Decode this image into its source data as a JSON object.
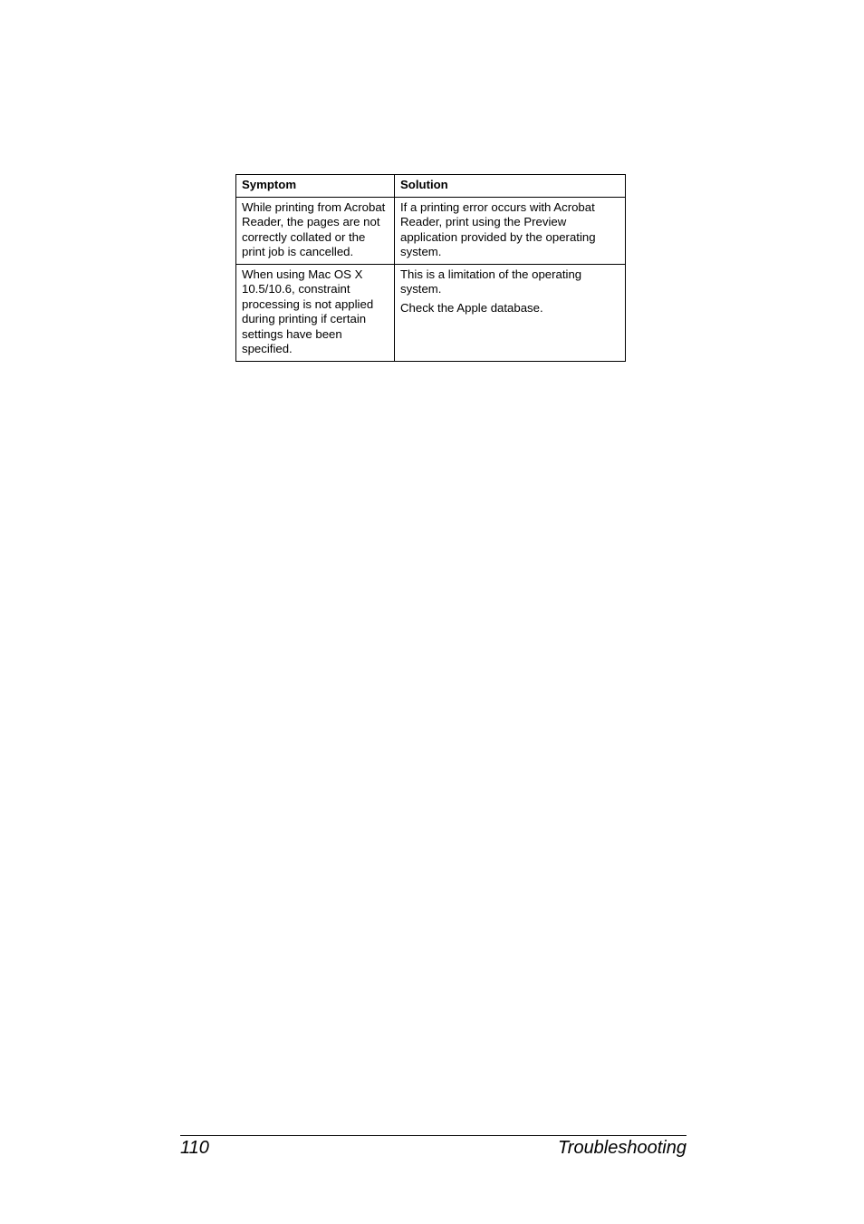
{
  "table": {
    "headers": {
      "symptom": "Symptom",
      "solution": "Solution"
    },
    "rows": [
      {
        "symptom": "While printing from Acrobat Reader, the pages are not correctly collated or the print job is cancelled.",
        "solution": "If a printing error occurs with Acrobat Reader, print using the Preview application provided by the operating system."
      },
      {
        "symptom": "When using Mac OS X 10.5/10.6, constraint processing is not applied during printing if certain settings have been specified.",
        "solution_line1": "This is a limitation of the operating system.",
        "solution_line2": "Check the Apple database."
      }
    ]
  },
  "footer": {
    "page_number": "110",
    "section": "Troubleshooting"
  }
}
